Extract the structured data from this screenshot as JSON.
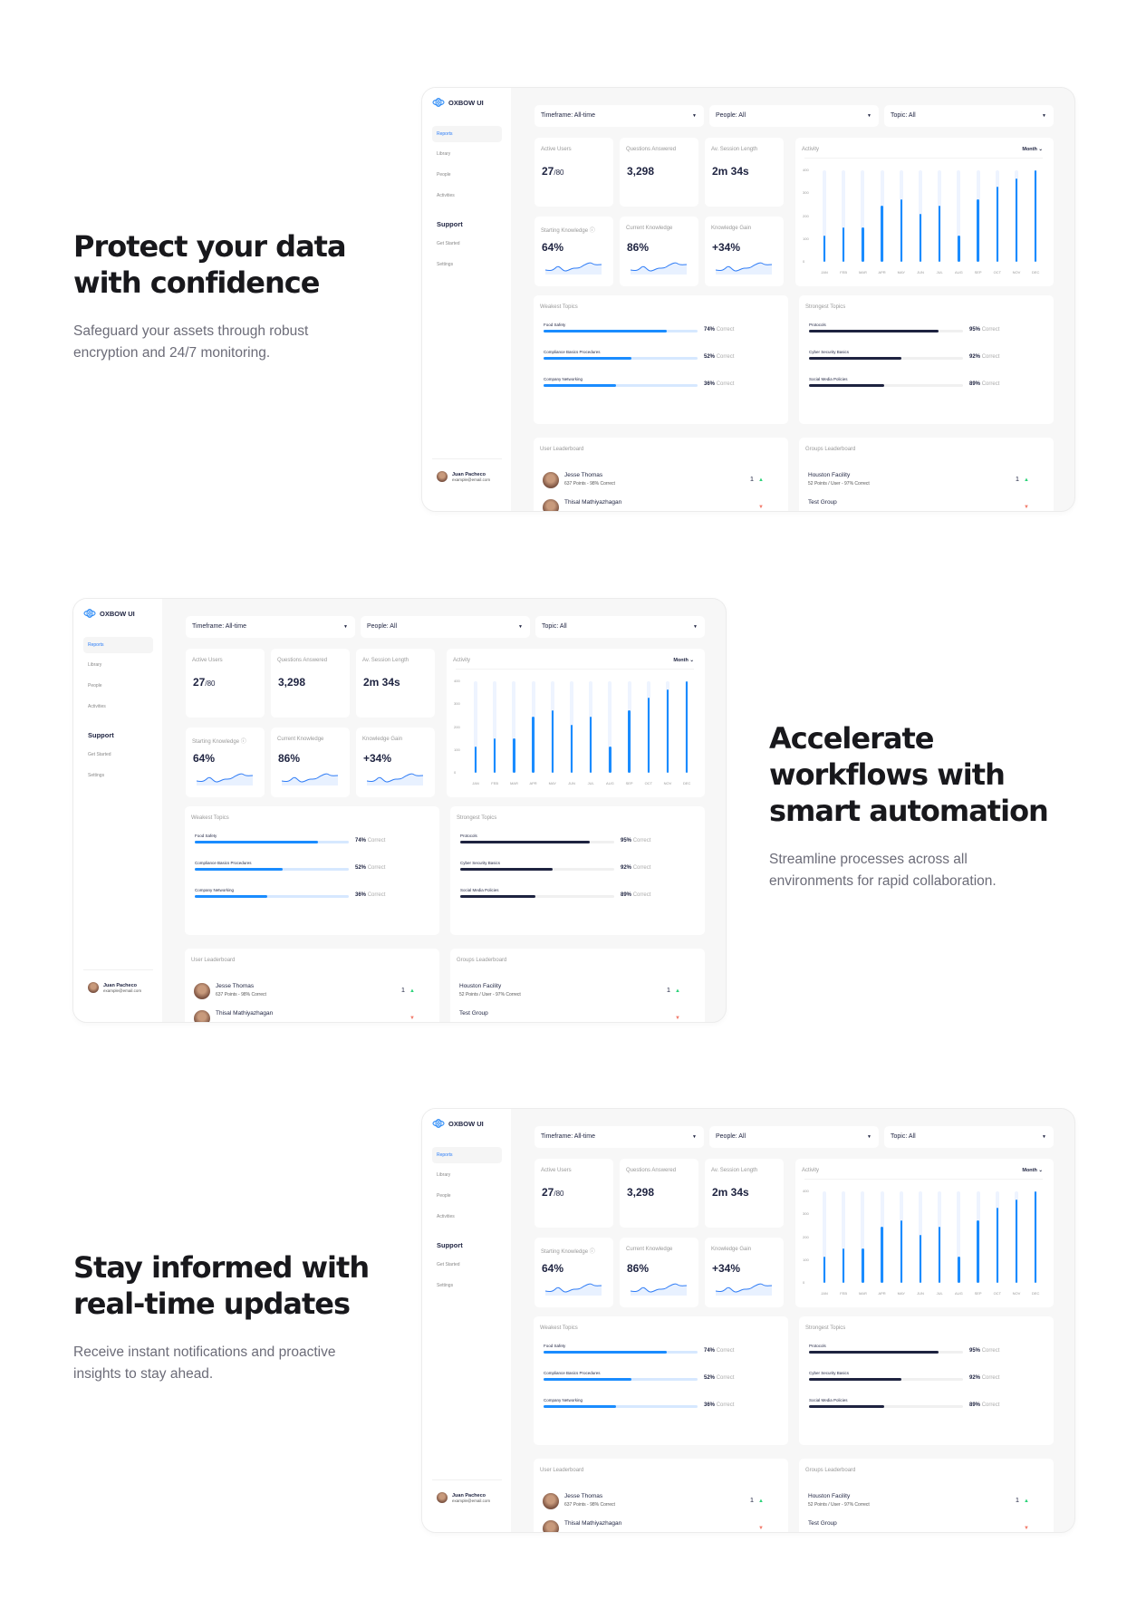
{
  "sections": [
    {
      "heading": "Protect your data with confidence",
      "body": "Safeguard your assets through robust encryption and 24/7 monitoring."
    },
    {
      "heading": "Accelerate workflows with smart automation",
      "body": "Streamline processes across all environments for rapid collaboration."
    },
    {
      "heading": "Stay informed with real-time updates",
      "body": "Receive instant notifications and proactive insights to stay ahead."
    }
  ],
  "dashboard": {
    "brand": "OXBOW UI",
    "nav": [
      {
        "label": "Reports",
        "active": true
      },
      {
        "label": "Library"
      },
      {
        "label": "People"
      },
      {
        "label": "Activities"
      }
    ],
    "support_heading": "Support",
    "support_items": [
      {
        "label": "Get Started"
      },
      {
        "label": "Settings"
      }
    ],
    "user": {
      "name": "Juan Pacheco",
      "email": "example@email.com"
    },
    "filters": [
      {
        "label": "Timeframe: All-time"
      },
      {
        "label": "People: All"
      },
      {
        "label": "Topic: All"
      }
    ],
    "stats": [
      {
        "title": "Active Users",
        "value": "27",
        "suffix": "/80"
      },
      {
        "title": "Questions Answered",
        "value": "3,298"
      },
      {
        "title": "Av. Session Length",
        "value": "2m 34s"
      }
    ],
    "knowledge": [
      {
        "title": "Starting Knowledge",
        "value": "64%",
        "info_icon": "info-icon"
      },
      {
        "title": "Current Knowledge",
        "value": "86%"
      },
      {
        "title": "Knowledge Gain",
        "value": "+34%"
      }
    ],
    "activity": {
      "title": "Activity",
      "period": "Month"
    },
    "weakest": {
      "title": "Weakest Topics",
      "suffix": "Correct",
      "items": [
        {
          "label": "Food Safety",
          "pct": "74%",
          "value": 74
        },
        {
          "label": "Compliance Basics Procedures",
          "pct": "52%",
          "value": 52
        },
        {
          "label": "Company Networking",
          "pct": "36%",
          "value": 36
        }
      ]
    },
    "strongest": {
      "title": "Strongest Topics",
      "suffix": "Correct",
      "items": [
        {
          "label": "Protocols",
          "pct": "95%",
          "value": 95
        },
        {
          "label": "Cyber Security Basics",
          "pct": "92%",
          "value": 92
        },
        {
          "label": "Social Media Policies",
          "pct": "89%",
          "value": 89
        }
      ]
    },
    "user_leaderboard": {
      "title": "User Leaderboard",
      "rows": [
        {
          "name": "Jesse Thomas",
          "sub": "637 Points - 98% Correct",
          "rank": "1",
          "trend": "up"
        },
        {
          "name": "Thisal Mathiyazhagan",
          "sub": "",
          "rank": "",
          "trend": "down"
        }
      ]
    },
    "groups_leaderboard": {
      "title": "Groups Leaderboard",
      "rows": [
        {
          "name": "Houston Facility",
          "sub": "52 Points / User - 97% Correct",
          "rank": "1",
          "trend": "up"
        },
        {
          "name": "Test Group",
          "sub": "",
          "rank": "",
          "trend": "down"
        }
      ]
    },
    "colors": {
      "accent": "#1a8cff",
      "dark_bar": "#1e2340",
      "weak_track": "#d6e8ff",
      "strong_track": "#f0f0f0",
      "up": "#2ed37a",
      "down": "#f27b6b"
    }
  },
  "chart_data": {
    "type": "bar",
    "title": "Activity",
    "categories": [
      "JAN",
      "FEB",
      "MAR",
      "APR",
      "MAY",
      "JUN",
      "JUL",
      "AUG",
      "SEP",
      "OCT",
      "NOV",
      "DEC"
    ],
    "values": [
      115,
      150,
      150,
      245,
      275,
      210,
      245,
      115,
      275,
      330,
      365,
      400
    ],
    "yticks": [
      "0",
      "100",
      "200",
      "300",
      "400"
    ],
    "ylim": [
      0,
      400
    ]
  }
}
